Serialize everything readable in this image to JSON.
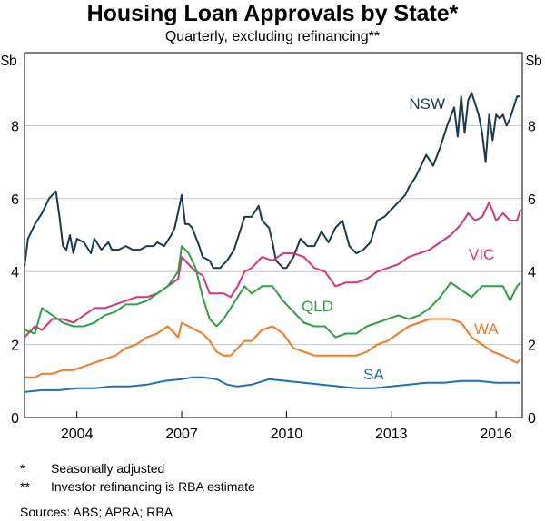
{
  "chart_data": {
    "type": "line",
    "title": "Housing Loan Approvals by State*",
    "subtitle": "Quarterly, excluding refinancing**",
    "y_unit_left": "$b",
    "y_unit_right": "$b",
    "ylim": [
      0,
      10
    ],
    "y_ticks": [
      0,
      2,
      4,
      6,
      8
    ],
    "xlim": [
      2002.5,
      2016.75
    ],
    "x_ticks": [
      2004,
      2007,
      2010,
      2013,
      2016
    ],
    "x_tick_labels": [
      "2004",
      "2007",
      "2010",
      "2013",
      "2016"
    ],
    "grid": true,
    "series": [
      {
        "name": "NSW",
        "color": "#1b3a4b",
        "x": [
          2002.5,
          2002.6,
          2002.8,
          2003.0,
          2003.2,
          2003.4,
          2003.5,
          2003.6,
          2003.7,
          2003.8,
          2003.9,
          2004.0,
          2004.2,
          2004.4,
          2004.5,
          2004.7,
          2004.9,
          2005.0,
          2005.2,
          2005.4,
          2005.6,
          2005.8,
          2006.0,
          2006.2,
          2006.3,
          2006.5,
          2006.7,
          2006.8,
          2007.0,
          2007.1,
          2007.2,
          2007.3,
          2007.5,
          2007.6,
          2007.8,
          2007.9,
          2008.0,
          2008.1,
          2008.3,
          2008.5,
          2008.7,
          2008.8,
          2009.0,
          2009.2,
          2009.3,
          2009.5,
          2009.6,
          2009.7,
          2009.9,
          2010.0,
          2010.2,
          2010.4,
          2010.6,
          2010.8,
          2011.0,
          2011.2,
          2011.4,
          2011.6,
          2011.8,
          2012.0,
          2012.2,
          2012.4,
          2012.6,
          2012.8,
          2013.0,
          2013.2,
          2013.4,
          2013.5,
          2013.7,
          2013.9,
          2014.0,
          2014.2,
          2014.4,
          2014.6,
          2014.8,
          2014.9,
          2015.0,
          2015.1,
          2015.2,
          2015.3,
          2015.4,
          2015.5,
          2015.6,
          2015.7,
          2015.8,
          2015.9,
          2016.0,
          2016.1,
          2016.2,
          2016.3,
          2016.4,
          2016.5,
          2016.6,
          2016.7
        ],
        "values": [
          4.15,
          4.9,
          5.3,
          5.6,
          6.0,
          6.2,
          5.5,
          4.7,
          4.6,
          5.0,
          4.5,
          4.9,
          4.8,
          4.5,
          4.9,
          4.6,
          4.8,
          4.6,
          4.6,
          4.7,
          4.6,
          4.6,
          4.7,
          4.7,
          4.8,
          4.7,
          5.0,
          5.2,
          6.1,
          5.3,
          5.3,
          5.2,
          4.7,
          4.4,
          4.3,
          4.1,
          4.1,
          4.1,
          4.3,
          4.6,
          5.2,
          5.5,
          5.5,
          5.8,
          5.4,
          5.2,
          4.8,
          4.3,
          4.1,
          4.1,
          4.4,
          4.9,
          4.7,
          4.7,
          5.1,
          4.8,
          5.2,
          5.4,
          4.7,
          4.5,
          4.6,
          4.8,
          5.4,
          5.5,
          5.7,
          5.9,
          6.1,
          6.3,
          6.6,
          7.0,
          7.2,
          6.9,
          7.4,
          8.0,
          8.5,
          7.7,
          8.8,
          7.8,
          8.7,
          8.9,
          8.6,
          8.3,
          7.8,
          7.0,
          8.3,
          7.6,
          8.3,
          8.2,
          8.3,
          8.0,
          8.2,
          8.5,
          8.8,
          8.8
        ]
      },
      {
        "name": "VIC",
        "color": "#d6337a",
        "x": [
          2002.5,
          2002.8,
          2003.0,
          2003.3,
          2003.6,
          2003.9,
          2004.2,
          2004.5,
          2004.8,
          2005.1,
          2005.4,
          2005.7,
          2006.0,
          2006.3,
          2006.6,
          2006.9,
          2007.0,
          2007.2,
          2007.4,
          2007.6,
          2007.8,
          2008.0,
          2008.2,
          2008.4,
          2008.6,
          2008.8,
          2009.0,
          2009.3,
          2009.6,
          2009.9,
          2010.2,
          2010.5,
          2010.8,
          2011.1,
          2011.4,
          2011.7,
          2012.0,
          2012.3,
          2012.6,
          2012.9,
          2013.2,
          2013.5,
          2013.8,
          2014.1,
          2014.4,
          2014.7,
          2015.0,
          2015.2,
          2015.4,
          2015.6,
          2015.8,
          2016.0,
          2016.2,
          2016.4,
          2016.6,
          2016.7
        ],
        "values": [
          2.2,
          2.5,
          2.4,
          2.7,
          2.7,
          2.6,
          2.8,
          3.0,
          3.0,
          3.1,
          3.2,
          3.3,
          3.3,
          3.4,
          3.6,
          3.8,
          4.4,
          4.2,
          4.0,
          3.9,
          3.4,
          3.4,
          3.4,
          3.3,
          3.6,
          4.0,
          4.1,
          4.4,
          4.3,
          4.5,
          4.5,
          4.4,
          4.1,
          4.0,
          3.6,
          3.7,
          3.7,
          3.8,
          4.0,
          4.1,
          4.2,
          4.4,
          4.5,
          4.6,
          4.8,
          5.0,
          5.3,
          5.6,
          5.4,
          5.5,
          5.9,
          5.4,
          5.6,
          5.4,
          5.4,
          5.7
        ]
      },
      {
        "name": "QLD",
        "color": "#2ea043",
        "x": [
          2002.5,
          2002.8,
          2003.0,
          2003.3,
          2003.6,
          2003.9,
          2004.2,
          2004.5,
          2004.8,
          2005.1,
          2005.4,
          2005.7,
          2006.0,
          2006.3,
          2006.6,
          2006.9,
          2007.0,
          2007.2,
          2007.4,
          2007.6,
          2007.8,
          2008.0,
          2008.2,
          2008.4,
          2008.6,
          2008.8,
          2009.0,
          2009.3,
          2009.6,
          2009.9,
          2010.2,
          2010.5,
          2010.8,
          2011.1,
          2011.4,
          2011.7,
          2012.0,
          2012.3,
          2012.6,
          2012.9,
          2013.2,
          2013.5,
          2013.8,
          2014.1,
          2014.4,
          2014.7,
          2015.0,
          2015.3,
          2015.6,
          2015.9,
          2016.2,
          2016.4,
          2016.6,
          2016.7
        ],
        "values": [
          2.4,
          2.3,
          3.0,
          2.8,
          2.6,
          2.5,
          2.5,
          2.6,
          2.8,
          2.9,
          3.1,
          3.1,
          3.2,
          3.4,
          3.6,
          4.0,
          4.7,
          4.5,
          4.1,
          3.3,
          2.7,
          2.5,
          2.7,
          3.0,
          3.3,
          3.6,
          3.4,
          3.6,
          3.6,
          3.2,
          2.9,
          2.6,
          2.5,
          2.5,
          2.2,
          2.3,
          2.3,
          2.5,
          2.6,
          2.7,
          2.8,
          2.7,
          2.8,
          3.0,
          3.3,
          3.7,
          3.5,
          3.3,
          3.6,
          3.6,
          3.6,
          3.2,
          3.6,
          3.7
        ]
      },
      {
        "name": "WA",
        "color": "#f07a25",
        "x": [
          2002.5,
          2002.8,
          2003.0,
          2003.3,
          2003.6,
          2003.9,
          2004.2,
          2004.5,
          2004.8,
          2005.1,
          2005.4,
          2005.7,
          2006.0,
          2006.3,
          2006.6,
          2006.9,
          2007.0,
          2007.2,
          2007.4,
          2007.6,
          2007.8,
          2008.0,
          2008.2,
          2008.4,
          2008.6,
          2008.8,
          2009.0,
          2009.3,
          2009.6,
          2009.9,
          2010.2,
          2010.5,
          2010.8,
          2011.1,
          2011.4,
          2011.7,
          2012.0,
          2012.3,
          2012.6,
          2012.9,
          2013.2,
          2013.5,
          2013.8,
          2014.1,
          2014.4,
          2014.7,
          2015.0,
          2015.3,
          2015.6,
          2015.9,
          2016.2,
          2016.4,
          2016.6,
          2016.7
        ],
        "values": [
          1.1,
          1.1,
          1.2,
          1.2,
          1.3,
          1.3,
          1.4,
          1.5,
          1.6,
          1.7,
          1.9,
          2.0,
          2.2,
          2.3,
          2.5,
          2.2,
          2.6,
          2.5,
          2.4,
          2.3,
          2.1,
          1.8,
          1.7,
          1.7,
          1.9,
          2.1,
          2.1,
          2.4,
          2.5,
          2.3,
          1.9,
          1.8,
          1.7,
          1.7,
          1.7,
          1.7,
          1.7,
          1.8,
          2.0,
          2.1,
          2.3,
          2.5,
          2.6,
          2.7,
          2.7,
          2.7,
          2.6,
          2.2,
          2.0,
          1.8,
          1.7,
          1.6,
          1.5,
          1.6
        ]
      },
      {
        "name": "SA",
        "color": "#1f6fb5",
        "x": [
          2002.5,
          2003.0,
          2003.5,
          2004.0,
          2004.5,
          2005.0,
          2005.5,
          2006.0,
          2006.5,
          2007.0,
          2007.3,
          2007.6,
          2008.0,
          2008.3,
          2008.6,
          2009.0,
          2009.5,
          2010.0,
          2010.5,
          2011.0,
          2011.5,
          2012.0,
          2012.5,
          2013.0,
          2013.5,
          2014.0,
          2014.5,
          2015.0,
          2015.5,
          2016.0,
          2016.5,
          2016.7
        ],
        "values": [
          0.7,
          0.75,
          0.75,
          0.8,
          0.8,
          0.85,
          0.85,
          0.9,
          1.0,
          1.05,
          1.1,
          1.1,
          1.05,
          0.9,
          0.85,
          0.9,
          1.05,
          1.0,
          0.95,
          0.9,
          0.85,
          0.8,
          0.8,
          0.85,
          0.9,
          0.95,
          0.95,
          1.0,
          1.0,
          0.95,
          0.95,
          0.95
        ]
      }
    ],
    "footnotes": [
      {
        "mark": "*",
        "text": "Seasonally adjusted"
      },
      {
        "mark": "**",
        "text": "Investor refinancing is RBA estimate"
      }
    ],
    "sources": "Sources:   ABS; APRA; RBA"
  }
}
